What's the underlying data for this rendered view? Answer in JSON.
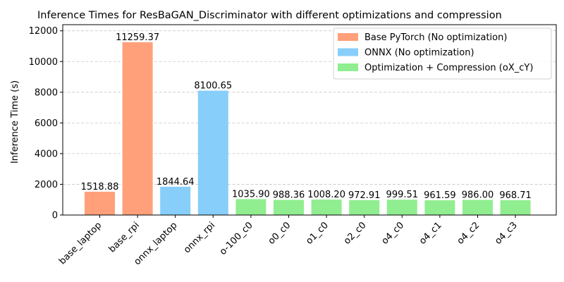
{
  "chart_data": {
    "type": "bar",
    "title": "Inference Times for ResBaGAN_Discriminator with different optimizations and compression",
    "xlabel": "",
    "ylabel": "Inference Time (s)",
    "ylim": [
      0,
      12400
    ],
    "yticks": [
      0,
      2000,
      4000,
      6000,
      8000,
      10000,
      12000
    ],
    "grid": "horizontal dashed",
    "legend_position": "top-right",
    "categories": [
      "base_laptop",
      "base_rpi",
      "onnx_laptop",
      "onnx_rpi",
      "o-100_c0",
      "o0_c0",
      "o1_c0",
      "o2_c0",
      "o4_c0",
      "o4_c1",
      "o4_c2",
      "o4_c3"
    ],
    "values": [
      1518.88,
      11259.37,
      1844.64,
      8100.65,
      1035.9,
      988.36,
      1008.2,
      972.91,
      999.51,
      961.59,
      986.0,
      968.71
    ],
    "value_labels": [
      "1518.88",
      "11259.37",
      "1844.64",
      "8100.65",
      "1035.90",
      "988.36",
      "1008.20",
      "972.91",
      "999.51",
      "961.59",
      "986.00",
      "968.71"
    ],
    "bar_groups": [
      0,
      0,
      1,
      1,
      2,
      2,
      2,
      2,
      2,
      2,
      2,
      2
    ],
    "legend": [
      {
        "label": "Base PyTorch (No optimization)",
        "color": "#ffa07a"
      },
      {
        "label": "ONNX (No optimization)",
        "color": "#87cefa"
      },
      {
        "label": "Optimization + Compression (oX_cY)",
        "color": "#90ee90"
      }
    ]
  }
}
